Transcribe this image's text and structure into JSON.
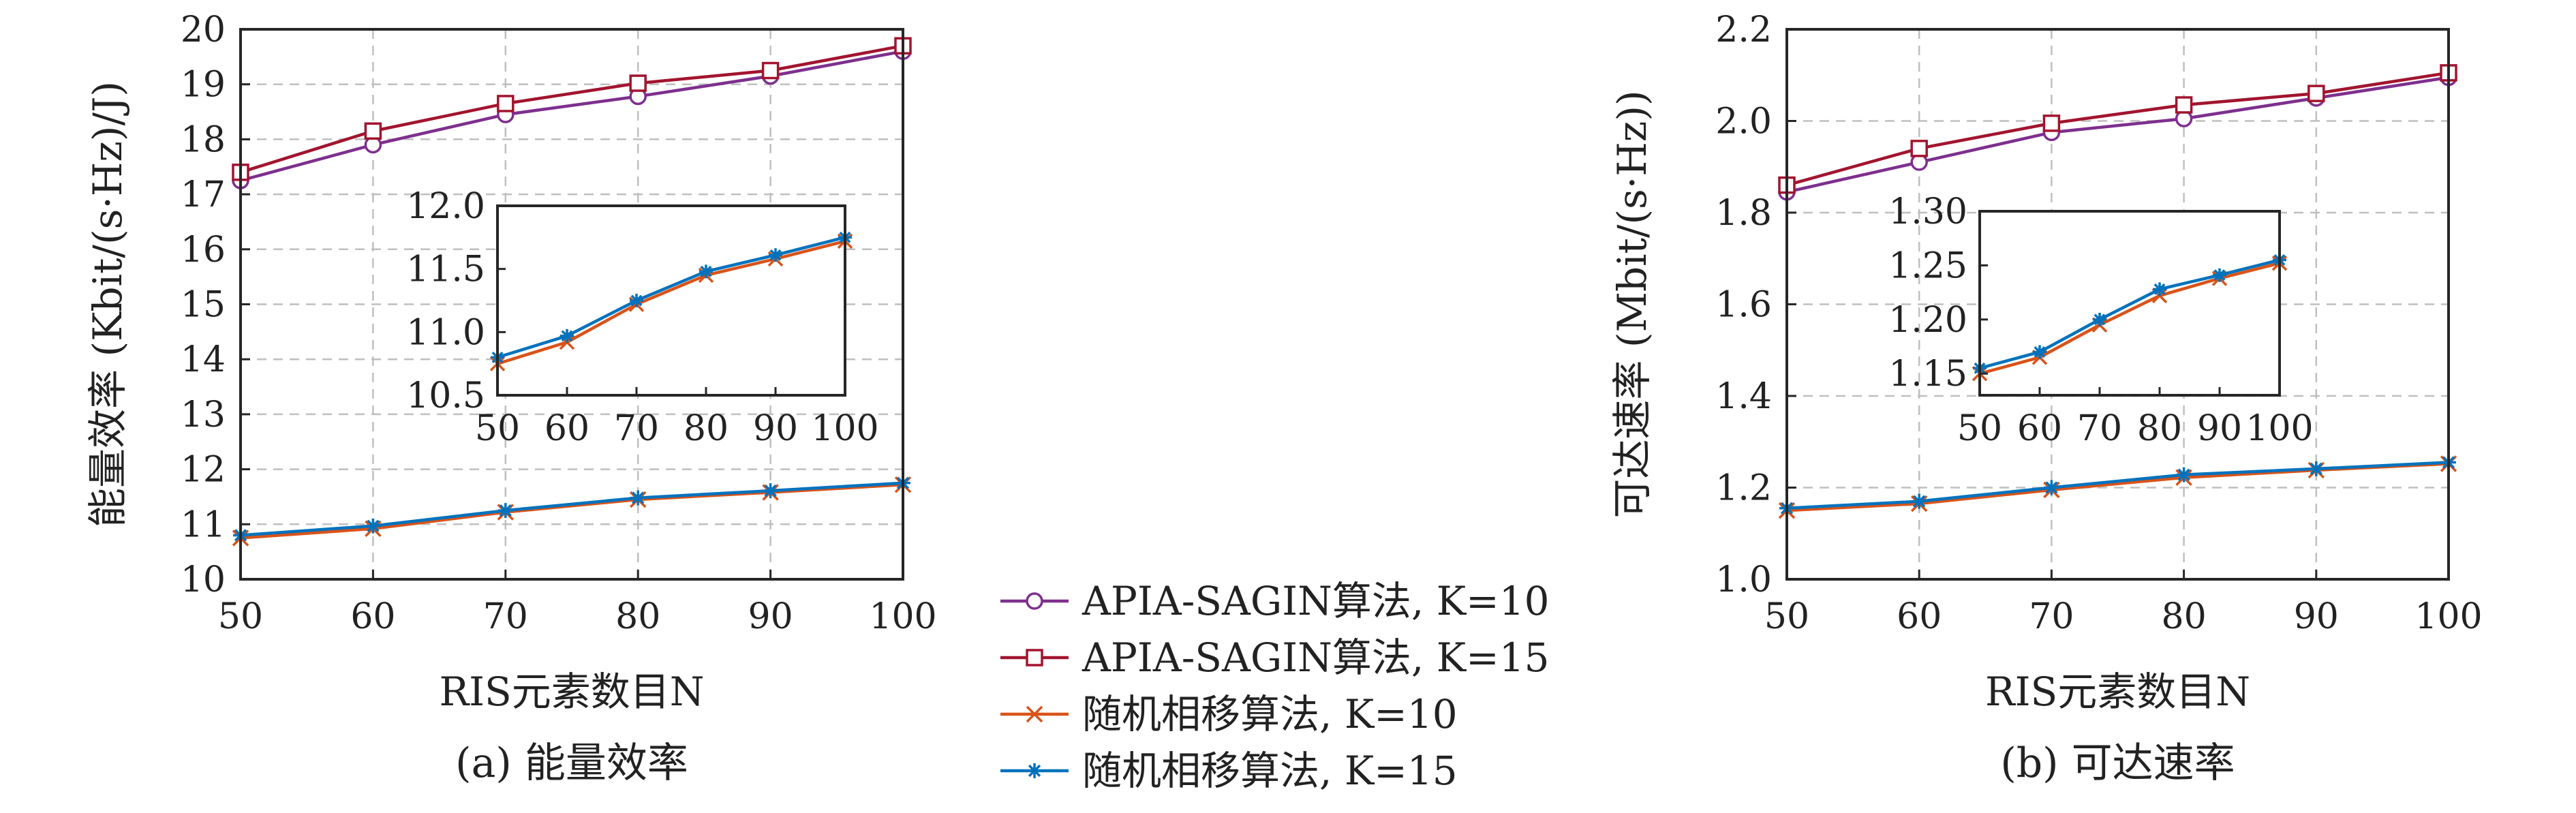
{
  "series_styles": [
    {
      "color": "#7e2f8e",
      "marker": "circle"
    },
    {
      "color": "#a2142f",
      "marker": "square"
    },
    {
      "color": "#d95319",
      "marker": "x"
    },
    {
      "color": "#0072bd",
      "marker": "asterisk"
    }
  ],
  "legend": {
    "entries": [
      "APIA-SAGIN算法, K=10",
      "APIA-SAGIN算法, K=15",
      "随机相移算法, K=10",
      "随机相移算法, K=15"
    ]
  },
  "chart_data": [
    {
      "type": "line",
      "caption": "(a) 能量效率",
      "xlabel": "RIS元素数目N",
      "ylabel": "能量效率 (Kbit/(s·Hz)/J)",
      "x": [
        50,
        60,
        70,
        80,
        90,
        100
      ],
      "xlim": [
        50,
        100
      ],
      "ylim": [
        10,
        20
      ],
      "xticks": [
        "50",
        "60",
        "70",
        "80",
        "90",
        "100"
      ],
      "yticks": [
        "10",
        "11",
        "12",
        "13",
        "14",
        "15",
        "16",
        "17",
        "18",
        "19",
        "20"
      ],
      "grid": true,
      "series": [
        {
          "name": "APIA-SAGIN算法, K=10",
          "values": [
            17.25,
            17.9,
            18.45,
            18.78,
            19.15,
            19.6
          ]
        },
        {
          "name": "APIA-SAGIN算法, K=15",
          "values": [
            17.4,
            18.15,
            18.65,
            19.02,
            19.25,
            19.7
          ]
        },
        {
          "name": "随机相移算法, K=10",
          "values": [
            10.75,
            10.92,
            11.22,
            11.45,
            11.58,
            11.72
          ]
        },
        {
          "name": "随机相移算法, K=15",
          "values": [
            10.8,
            10.97,
            11.25,
            11.48,
            11.61,
            11.75
          ]
        }
      ],
      "inset": {
        "xlim": [
          50,
          100
        ],
        "ylim": [
          10.5,
          12.0
        ],
        "xticks": [
          "50",
          "60",
          "70",
          "80",
          "90",
          "100"
        ],
        "yticks": [
          "10.5",
          "11.0",
          "11.5",
          "12.0"
        ],
        "series_indices": [
          2,
          3
        ]
      }
    },
    {
      "type": "line",
      "caption": "(b) 可达速率",
      "xlabel": "RIS元素数目N",
      "ylabel": "可达速率 (Mbit/(s·Hz))",
      "x": [
        50,
        60,
        70,
        80,
        90,
        100
      ],
      "xlim": [
        50,
        100
      ],
      "ylim": [
        1.0,
        2.2
      ],
      "xticks": [
        "50",
        "60",
        "70",
        "80",
        "90",
        "100"
      ],
      "yticks": [
        "1.0",
        "1.2",
        "1.4",
        "1.6",
        "1.8",
        "2.0",
        "2.2"
      ],
      "grid": true,
      "series": [
        {
          "name": "APIA-SAGIN算法, K=10",
          "values": [
            1.845,
            1.91,
            1.975,
            2.005,
            2.05,
            2.095
          ]
        },
        {
          "name": "APIA-SAGIN算法, K=15",
          "values": [
            1.86,
            1.94,
            1.995,
            2.035,
            2.06,
            2.105
          ]
        },
        {
          "name": "随机相移算法, K=10",
          "values": [
            1.15,
            1.165,
            1.195,
            1.222,
            1.238,
            1.252
          ]
        },
        {
          "name": "随机相移算法, K=15",
          "values": [
            1.155,
            1.17,
            1.2,
            1.228,
            1.241,
            1.255
          ]
        }
      ],
      "inset": {
        "xlim": [
          50,
          100
        ],
        "ylim": [
          1.13,
          1.3
        ],
        "xticks": [
          "50",
          "60",
          "70",
          "80",
          "90",
          "100"
        ],
        "yticks": [
          "1.15",
          "1.20",
          "1.25",
          "1.30"
        ],
        "series_indices": [
          2,
          3
        ]
      }
    }
  ]
}
